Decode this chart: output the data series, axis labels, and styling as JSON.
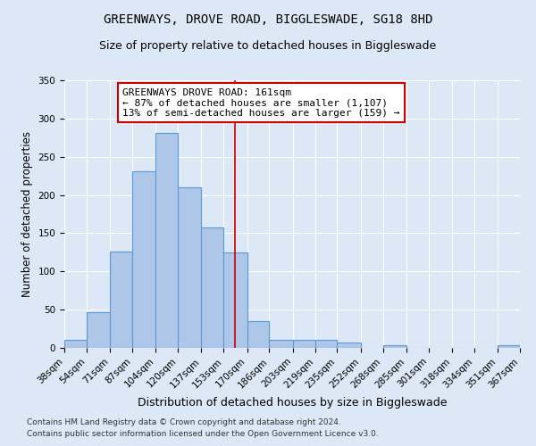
{
  "title": "GREENWAYS, DROVE ROAD, BIGGLESWADE, SG18 8HD",
  "subtitle": "Size of property relative to detached houses in Biggleswade",
  "xlabel": "Distribution of detached houses by size in Biggleswade",
  "ylabel": "Number of detached properties",
  "bin_edges": [
    38,
    54,
    71,
    87,
    104,
    120,
    137,
    153,
    170,
    186,
    203,
    219,
    235,
    252,
    268,
    285,
    301,
    318,
    334,
    351,
    367
  ],
  "bar_heights": [
    10,
    47,
    126,
    231,
    281,
    210,
    157,
    125,
    35,
    11,
    11,
    10,
    7,
    0,
    3,
    0,
    0,
    0,
    0,
    3
  ],
  "bar_color": "#aec6e8",
  "bar_edgecolor": "#5b9bd5",
  "vline_x": 161,
  "vline_color": "#cc0000",
  "annotation_line1": "GREENWAYS DROVE ROAD: 161sqm",
  "annotation_line2": "← 87% of detached houses are smaller (1,107)",
  "annotation_line3": "13% of semi-detached houses are larger (159) →",
  "annotation_box_edgecolor": "#cc0000",
  "annotation_box_facecolor": "#ffffff",
  "ylim": [
    0,
    350
  ],
  "yticks": [
    0,
    50,
    100,
    150,
    200,
    250,
    300,
    350
  ],
  "background_color": "#dce8f5",
  "grid_color": "#ffffff",
  "footer1": "Contains HM Land Registry data © Crown copyright and database right 2024.",
  "footer2": "Contains public sector information licensed under the Open Government Licence v3.0.",
  "title_fontsize": 10,
  "subtitle_fontsize": 9,
  "xlabel_fontsize": 9,
  "ylabel_fontsize": 8.5,
  "tick_fontsize": 7.5,
  "annotation_fontsize": 8,
  "footer_fontsize": 6.5
}
